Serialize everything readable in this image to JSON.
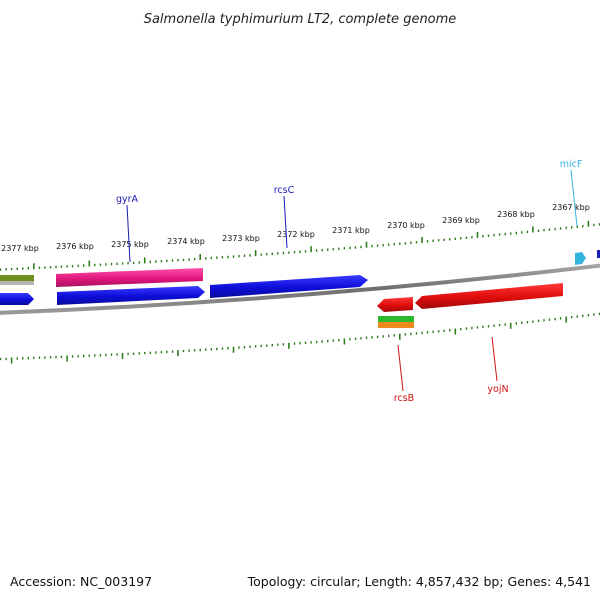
{
  "header": {
    "title": "Salmonella typhimurium LT2, complete genome"
  },
  "footer": {
    "accession": "Accession: NC_003197",
    "summary": "Topology: circular; Length: 4,857,432 bp; Genes: 4,541"
  },
  "ruler": {
    "tick_labels": [
      "2377 kbp",
      "2376 kbp",
      "2375 kbp",
      "2374 kbp",
      "2373 kbp",
      "2372 kbp",
      "2371 kbp",
      "2370 kbp",
      "2369 kbp",
      "2368 kbp",
      "2367 kbp"
    ]
  },
  "genes": {
    "gyrA": {
      "label": "gyrA",
      "color": "#1a1ab4"
    },
    "rcsC": {
      "label": "rcsC",
      "color": "#1a1ab4"
    },
    "micF": {
      "label": "micF",
      "color": "#33b5e0"
    },
    "rcsB": {
      "label": "rcsB",
      "color": "#cc1111"
    },
    "yojN": {
      "label": "yojN",
      "color": "#cc1111"
    }
  },
  "colors": {
    "backbone": "#808080",
    "tick": "#2e7d1e",
    "forward_cds": "#1010e0",
    "reverse_cds": "#e01010",
    "rna": "#e0147a",
    "ncrna": "#33b5e0"
  }
}
